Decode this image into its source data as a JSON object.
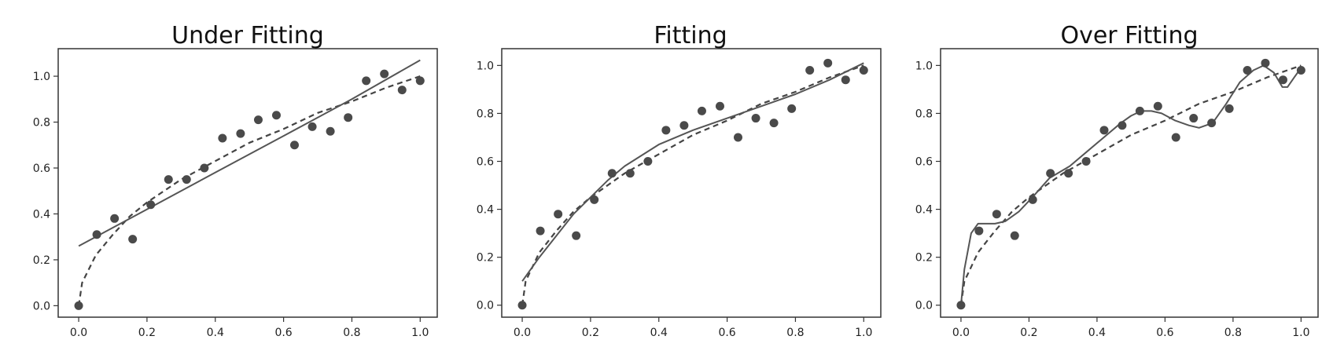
{
  "chart_data": [
    {
      "type": "scatter",
      "title": "Under Fitting",
      "xlabel": "",
      "ylabel": "",
      "xlim": [
        -0.06,
        1.05
      ],
      "ylim": [
        -0.05,
        1.12
      ],
      "x_ticks": [
        "0.0",
        "0.2",
        "0.4",
        "0.6",
        "0.8",
        "1.0"
      ],
      "y_ticks": [
        "0.0",
        "0.2",
        "0.4",
        "0.6",
        "0.8",
        "1.0"
      ],
      "grid": false,
      "colors": {
        "points": "#4a4a4a",
        "fit": "#555555",
        "true_function": "#444444"
      },
      "points": {
        "x": [
          0.0,
          0.053,
          0.105,
          0.158,
          0.211,
          0.263,
          0.316,
          0.368,
          0.421,
          0.474,
          0.526,
          0.579,
          0.632,
          0.684,
          0.737,
          0.789,
          0.842,
          0.895,
          0.947,
          1.0
        ],
        "y": [
          0.0,
          0.31,
          0.38,
          0.29,
          0.44,
          0.55,
          0.55,
          0.6,
          0.73,
          0.75,
          0.81,
          0.83,
          0.7,
          0.78,
          0.76,
          0.82,
          0.98,
          1.01,
          0.94,
          0.98
        ]
      },
      "fit_line": {
        "style": "solid",
        "x": [
          0.0,
          0.2,
          0.4,
          0.6,
          0.8,
          1.0
        ],
        "y": [
          0.26,
          0.42,
          0.58,
          0.74,
          0.9,
          1.07
        ]
      },
      "true_function": {
        "style": "dashed",
        "x": [
          0.0,
          0.01,
          0.05,
          0.1,
          0.15,
          0.2,
          0.3,
          0.4,
          0.5,
          0.6,
          0.7,
          0.8,
          0.9,
          1.0
        ],
        "y": [
          0.0,
          0.1,
          0.22,
          0.31,
          0.39,
          0.45,
          0.55,
          0.63,
          0.71,
          0.77,
          0.84,
          0.89,
          0.95,
          1.0
        ]
      }
    },
    {
      "type": "scatter",
      "title": "Fitting",
      "xlabel": "",
      "ylabel": "",
      "xlim": [
        -0.06,
        1.05
      ],
      "ylim": [
        -0.05,
        1.07
      ],
      "x_ticks": [
        "0.0",
        "0.2",
        "0.4",
        "0.6",
        "0.8",
        "1.0"
      ],
      "y_ticks": [
        "0.0",
        "0.2",
        "0.4",
        "0.6",
        "0.8",
        "1.0"
      ],
      "grid": false,
      "colors": {
        "points": "#4a4a4a",
        "fit": "#555555",
        "true_function": "#444444"
      },
      "points": {
        "x": [
          0.0,
          0.053,
          0.105,
          0.158,
          0.211,
          0.263,
          0.316,
          0.368,
          0.421,
          0.474,
          0.526,
          0.579,
          0.632,
          0.684,
          0.737,
          0.789,
          0.842,
          0.895,
          0.947,
          1.0
        ],
        "y": [
          0.0,
          0.31,
          0.38,
          0.29,
          0.44,
          0.55,
          0.55,
          0.6,
          0.73,
          0.75,
          0.81,
          0.83,
          0.7,
          0.78,
          0.76,
          0.82,
          0.98,
          1.01,
          0.94,
          0.98
        ]
      },
      "fit_line": {
        "style": "solid",
        "x": [
          0.0,
          0.05,
          0.1,
          0.15,
          0.2,
          0.25,
          0.3,
          0.4,
          0.5,
          0.6,
          0.7,
          0.8,
          0.9,
          1.0
        ],
        "y": [
          0.1,
          0.2,
          0.29,
          0.38,
          0.45,
          0.52,
          0.58,
          0.67,
          0.73,
          0.78,
          0.83,
          0.88,
          0.94,
          1.01
        ]
      },
      "true_function": {
        "style": "dashed",
        "x": [
          0.0,
          0.01,
          0.05,
          0.1,
          0.15,
          0.2,
          0.3,
          0.4,
          0.5,
          0.6,
          0.7,
          0.8,
          0.9,
          1.0
        ],
        "y": [
          0.0,
          0.1,
          0.22,
          0.31,
          0.39,
          0.45,
          0.55,
          0.63,
          0.71,
          0.77,
          0.84,
          0.89,
          0.95,
          1.0
        ]
      }
    },
    {
      "type": "scatter",
      "title": "Over Fitting",
      "xlabel": "",
      "ylabel": "",
      "xlim": [
        -0.06,
        1.05
      ],
      "ylim": [
        -0.05,
        1.07
      ],
      "x_ticks": [
        "0.0",
        "0.2",
        "0.4",
        "0.6",
        "0.8",
        "1.0"
      ],
      "y_ticks": [
        "0.0",
        "0.2",
        "0.4",
        "0.6",
        "0.8",
        "1.0"
      ],
      "grid": false,
      "colors": {
        "points": "#4a4a4a",
        "fit": "#555555",
        "true_function": "#444444"
      },
      "points": {
        "x": [
          0.0,
          0.053,
          0.105,
          0.158,
          0.211,
          0.263,
          0.316,
          0.368,
          0.421,
          0.474,
          0.526,
          0.579,
          0.632,
          0.684,
          0.737,
          0.789,
          0.842,
          0.895,
          0.947,
          1.0
        ],
        "y": [
          0.0,
          0.31,
          0.38,
          0.29,
          0.44,
          0.55,
          0.55,
          0.6,
          0.73,
          0.75,
          0.81,
          0.83,
          0.7,
          0.78,
          0.76,
          0.82,
          0.98,
          1.01,
          0.94,
          0.98
        ]
      },
      "fit_line": {
        "style": "solid",
        "x": [
          0.0,
          0.01,
          0.03,
          0.05,
          0.07,
          0.1,
          0.13,
          0.17,
          0.21,
          0.26,
          0.32,
          0.37,
          0.42,
          0.47,
          0.5,
          0.53,
          0.56,
          0.59,
          0.63,
          0.67,
          0.7,
          0.74,
          0.78,
          0.82,
          0.86,
          0.89,
          0.92,
          0.945,
          0.96,
          0.98,
          1.0
        ],
        "y": [
          0.0,
          0.15,
          0.3,
          0.34,
          0.34,
          0.34,
          0.35,
          0.39,
          0.45,
          0.53,
          0.58,
          0.64,
          0.7,
          0.76,
          0.79,
          0.81,
          0.81,
          0.8,
          0.77,
          0.75,
          0.74,
          0.76,
          0.84,
          0.93,
          0.98,
          1.0,
          0.97,
          0.91,
          0.91,
          0.95,
          0.99
        ]
      },
      "true_function": {
        "style": "dashed",
        "x": [
          0.0,
          0.01,
          0.05,
          0.1,
          0.15,
          0.2,
          0.3,
          0.4,
          0.5,
          0.6,
          0.7,
          0.8,
          0.9,
          1.0
        ],
        "y": [
          0.0,
          0.1,
          0.22,
          0.31,
          0.39,
          0.45,
          0.55,
          0.63,
          0.71,
          0.77,
          0.84,
          0.89,
          0.95,
          1.0
        ]
      }
    }
  ]
}
